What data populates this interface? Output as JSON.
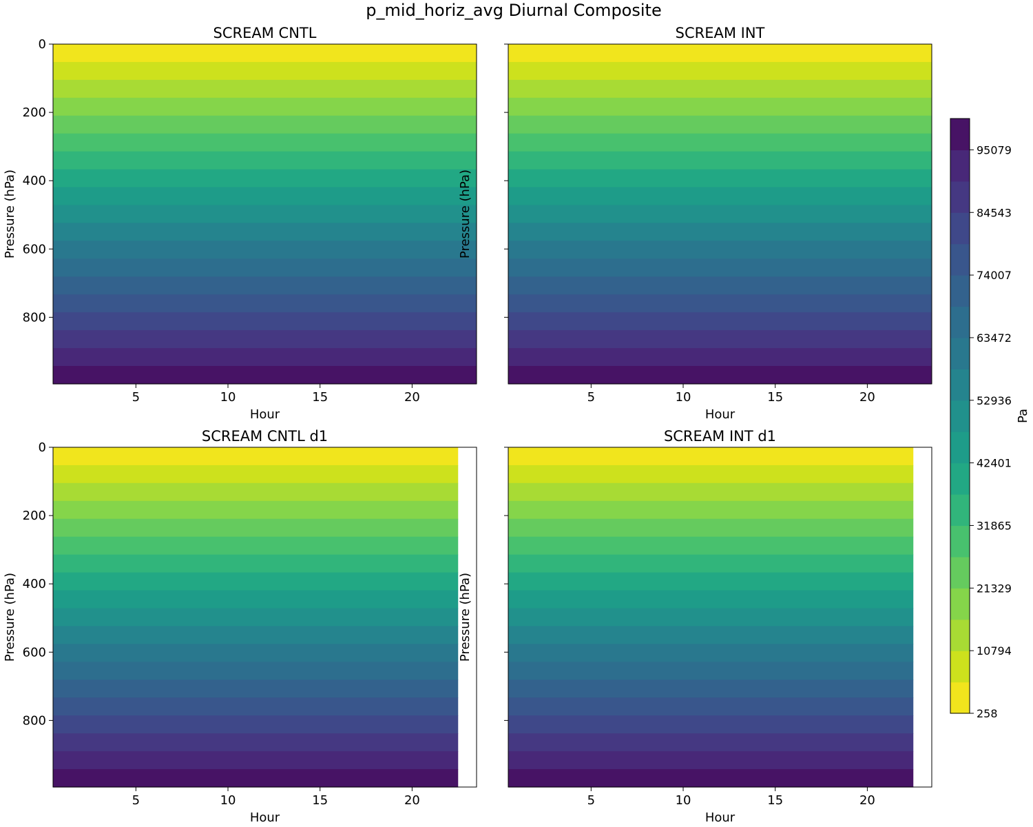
{
  "figure_title": "p_mid_horiz_avg Diurnal Composite",
  "chart_data": [
    {
      "type": "heatmap",
      "title": "SCREAM CNTL",
      "xlabel": "Hour",
      "ylabel": "Pressure (hPa)",
      "x_ticks": [
        5,
        10,
        15,
        20
      ],
      "y_ticks": [
        0,
        200,
        400,
        600,
        800
      ],
      "xlim": [
        0.5,
        23.5
      ],
      "ylim": [
        995,
        0
      ],
      "data_x_range": [
        0.5,
        23.5
      ],
      "y_levels": [
        0,
        52.4,
        104.7,
        157.1,
        209.5,
        261.8,
        314.2,
        366.6,
        418.9,
        471.3,
        523.7,
        576.0,
        628.4,
        680.8,
        733.1,
        785.5,
        837.9,
        890.2,
        942.6,
        995
      ],
      "level_color_index": [
        0,
        1,
        2,
        3,
        4,
        5,
        6,
        7,
        8,
        9,
        10,
        11,
        12,
        13,
        14,
        15,
        16,
        17,
        18
      ],
      "show_ylabel_ticks": true
    },
    {
      "type": "heatmap",
      "title": "SCREAM INT",
      "xlabel": "Hour",
      "ylabel": "Pressure (hPa)",
      "x_ticks": [
        5,
        10,
        15,
        20
      ],
      "y_ticks": [
        0,
        200,
        400,
        600,
        800
      ],
      "xlim": [
        0.5,
        23.5
      ],
      "ylim": [
        995,
        0
      ],
      "data_x_range": [
        0.5,
        23.5
      ],
      "y_levels": [
        0,
        52.4,
        104.7,
        157.1,
        209.5,
        261.8,
        314.2,
        366.6,
        418.9,
        471.3,
        523.7,
        576.0,
        628.4,
        680.8,
        733.1,
        785.5,
        837.9,
        890.2,
        942.6,
        995
      ],
      "level_color_index": [
        0,
        1,
        2,
        3,
        4,
        5,
        6,
        7,
        8,
        9,
        10,
        11,
        12,
        13,
        14,
        15,
        16,
        17,
        18
      ],
      "show_ylabel_ticks": false
    },
    {
      "type": "heatmap",
      "title": "SCREAM CNTL d1",
      "xlabel": "Hour",
      "ylabel": "Pressure (hPa)",
      "x_ticks": [
        5,
        10,
        15,
        20
      ],
      "y_ticks": [
        0,
        200,
        400,
        600,
        800
      ],
      "xlim": [
        0.5,
        23.5
      ],
      "ylim": [
        995,
        0
      ],
      "data_x_range": [
        0.5,
        22.5
      ],
      "y_levels": [
        0,
        52.4,
        104.7,
        157.1,
        209.5,
        261.8,
        314.2,
        366.6,
        418.9,
        471.3,
        523.7,
        576.0,
        628.4,
        680.8,
        733.1,
        785.5,
        837.9,
        890.2,
        942.6,
        995
      ],
      "level_color_index": [
        0,
        1,
        2,
        3,
        4,
        5,
        6,
        7,
        8,
        9,
        10,
        11,
        12,
        13,
        14,
        15,
        16,
        17,
        18
      ],
      "show_ylabel_ticks": true
    },
    {
      "type": "heatmap",
      "title": "SCREAM INT d1",
      "xlabel": "Hour",
      "ylabel": "Pressure (hPa)",
      "x_ticks": [
        5,
        10,
        15,
        20
      ],
      "y_ticks": [
        0,
        200,
        400,
        600,
        800
      ],
      "xlim": [
        0.5,
        23.5
      ],
      "ylim": [
        995,
        0
      ],
      "data_x_range": [
        0.5,
        22.5
      ],
      "y_levels": [
        0,
        52.4,
        104.7,
        157.1,
        209.5,
        261.8,
        314.2,
        366.6,
        418.9,
        471.3,
        523.7,
        576.0,
        628.4,
        680.8,
        733.1,
        785.5,
        837.9,
        890.2,
        942.6,
        995
      ],
      "level_color_index": [
        0,
        1,
        2,
        3,
        4,
        5,
        6,
        7,
        8,
        9,
        10,
        11,
        12,
        13,
        14,
        15,
        16,
        17,
        18
      ],
      "show_ylabel_ticks": false
    }
  ],
  "colorbar": {
    "label": "Pa",
    "range": [
      258,
      100347
    ],
    "tick_values": [
      258,
      10794,
      21329,
      31865,
      42401,
      52936,
      63472,
      74007,
      84543,
      95079
    ],
    "tick_labels": [
      "258",
      "10794",
      "21329",
      "31865",
      "42401",
      "52936",
      "63472",
      "74007",
      "84543",
      "95079"
    ],
    "colors": [
      "#f1e51d",
      "#cde11d",
      "#a8db34",
      "#85d54a",
      "#65cb5e",
      "#48c16e",
      "#31b57b",
      "#22a884",
      "#1e9c89",
      "#21918c",
      "#25848e",
      "#29788e",
      "#2d6e8e",
      "#33628d",
      "#39568c",
      "#3f4889",
      "#453882",
      "#482878",
      "#471365"
    ]
  }
}
